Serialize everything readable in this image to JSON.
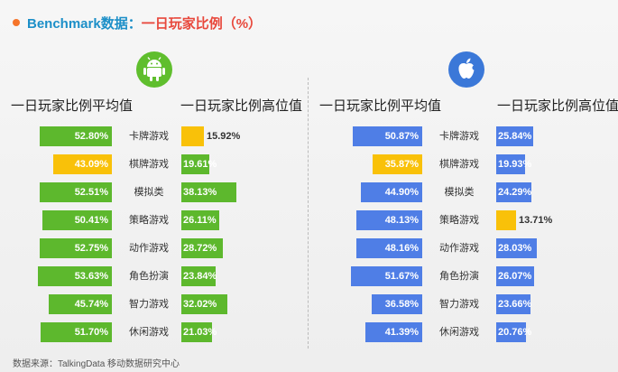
{
  "header": {
    "title_main": "Benchmark数据：",
    "title_sub": "一日玩家比例（%）"
  },
  "android": {
    "icon": "android-icon",
    "avg_header": "一日玩家比例平均值",
    "high_header": "一日玩家比例高位值"
  },
  "ios": {
    "icon": "apple-icon",
    "avg_header": "一日玩家比例平均值",
    "high_header": "一日玩家比例高位值"
  },
  "colors": {
    "android_bar": "#5db82d",
    "ios_bar": "#4f7ee6",
    "highlight": "#f9c109",
    "title_main": "#1c8fc8",
    "title_sub": "#e8483c"
  },
  "footer": {
    "source": "数据来源：TalkingData 移动数据研究中心"
  },
  "chart_data": [
    {
      "type": "bar",
      "platform": "Android",
      "categories": [
        "卡牌游戏",
        "棋牌游戏",
        "模拟类",
        "策略游戏",
        "动作游戏",
        "角色扮演",
        "智力游戏",
        "休闲游戏"
      ],
      "series": [
        {
          "name": "一日玩家比例平均值",
          "values": [
            52.8,
            43.09,
            52.51,
            50.41,
            52.75,
            53.63,
            45.74,
            51.7
          ],
          "labels": [
            "52.80%",
            "43.09%",
            "52.51%",
            "50.41%",
            "52.75%",
            "53.63%",
            "45.74%",
            "51.70%"
          ],
          "highlight_index": 1
        },
        {
          "name": "一日玩家比例高位值",
          "values": [
            15.92,
            19.61,
            38.13,
            26.11,
            28.72,
            23.84,
            32.02,
            21.03
          ],
          "labels": [
            "15.92%",
            "19.61%",
            "38.13%",
            "26.11%",
            "28.72%",
            "23.84%",
            "32.02%",
            "21.03%"
          ],
          "highlight_index": 0
        }
      ]
    },
    {
      "type": "bar",
      "platform": "iOS",
      "categories": [
        "卡牌游戏",
        "棋牌游戏",
        "模拟类",
        "策略游戏",
        "动作游戏",
        "角色扮演",
        "智力游戏",
        "休闲游戏"
      ],
      "series": [
        {
          "name": "一日玩家比例平均值",
          "values": [
            50.87,
            35.87,
            44.9,
            48.13,
            48.16,
            51.67,
            36.58,
            41.39
          ],
          "labels": [
            "50.87%",
            "35.87%",
            "44.90%",
            "48.13%",
            "48.16%",
            "51.67%",
            "36.58%",
            "41.39%"
          ],
          "highlight_index": 1
        },
        {
          "name": "一日玩家比例高位值",
          "values": [
            25.84,
            19.93,
            24.29,
            13.71,
            28.03,
            26.07,
            23.66,
            20.76
          ],
          "labels": [
            "25.84%",
            "19.93%",
            "24.29%",
            "13.71%",
            "28.03%",
            "26.07%",
            "23.66%",
            "20.76%"
          ],
          "highlight_index": 3
        }
      ]
    }
  ]
}
